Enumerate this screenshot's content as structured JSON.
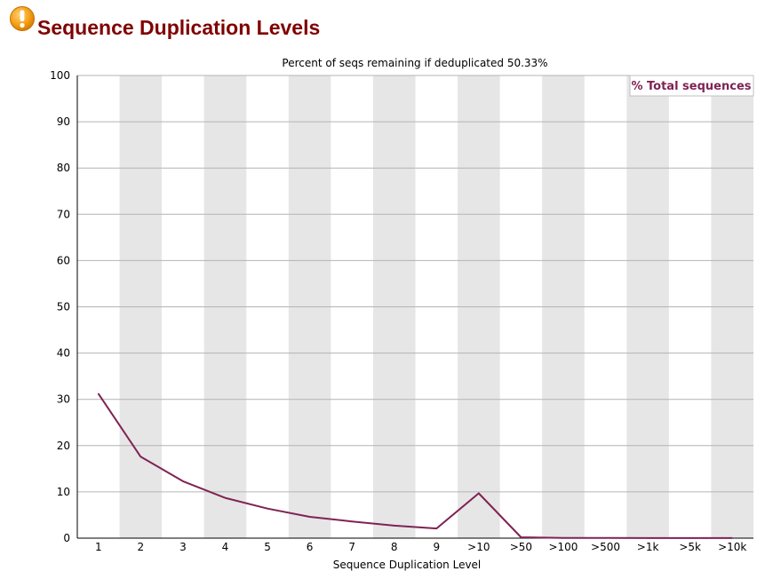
{
  "page": {
    "title": "Sequence Duplication Levels",
    "status_icon": "warning-icon"
  },
  "colors": {
    "title": "#800000",
    "series": "#7f2354",
    "band": "#e6e6e6",
    "grid": "#b4b4b4"
  },
  "chart_data": {
    "type": "line",
    "title": "Percent of seqs remaining if deduplicated 50.33%",
    "xlabel": "Sequence Duplication Level",
    "ylabel": "",
    "ylim": [
      0,
      100
    ],
    "yticks": [
      0,
      10,
      20,
      30,
      40,
      50,
      60,
      70,
      80,
      90,
      100
    ],
    "grid": true,
    "legend_position": "top-right",
    "categories": [
      "1",
      "2",
      "3",
      "4",
      "5",
      "6",
      "7",
      "8",
      "9",
      ">10",
      ">50",
      ">100",
      ">500",
      ">1k",
      ">5k",
      ">10k"
    ],
    "series": [
      {
        "name": "% Total sequences",
        "values": [
          31.2,
          17.6,
          12.3,
          8.7,
          6.4,
          4.6,
          3.6,
          2.7,
          2.1,
          9.7,
          0.2,
          0.05,
          0.03,
          0.02,
          0.01,
          0.01
        ]
      }
    ]
  }
}
